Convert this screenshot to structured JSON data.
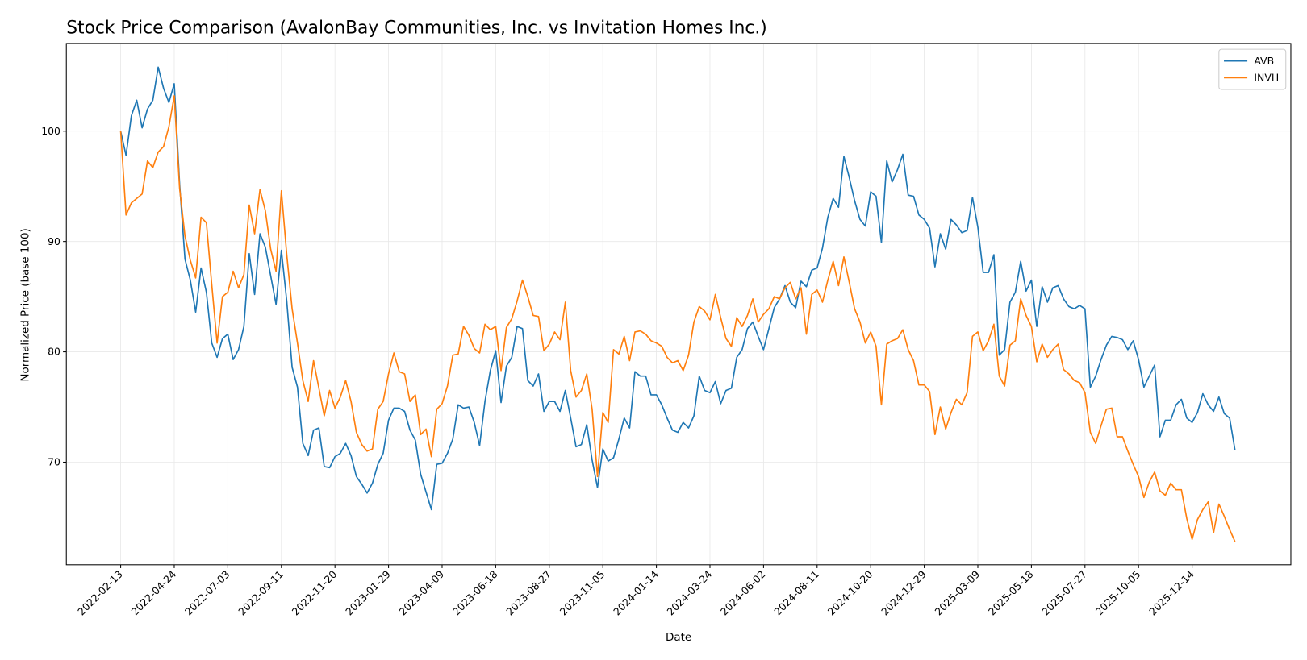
{
  "chart_data": {
    "type": "line",
    "title": "Stock Price Comparison (AvalonBay Communities, Inc. vs Invitation Homes Inc.)",
    "xlabel": "Date",
    "ylabel": "Normalized Price (base 100)",
    "x": [
      "2022-02-13",
      "2022-02-20",
      "2022-02-27",
      "2022-03-06",
      "2022-03-13",
      "2022-03-20",
      "2022-03-27",
      "2022-04-03",
      "2022-04-10",
      "2022-04-17",
      "2022-04-24",
      "2022-05-01",
      "2022-05-08",
      "2022-05-15",
      "2022-05-22",
      "2022-05-29",
      "2022-06-05",
      "2022-06-12",
      "2022-06-19",
      "2022-06-26",
      "2022-07-03",
      "2022-07-10",
      "2022-07-17",
      "2022-07-24",
      "2022-07-31",
      "2022-08-07",
      "2022-08-14",
      "2022-08-21",
      "2022-08-28",
      "2022-09-04",
      "2022-09-11",
      "2022-09-18",
      "2022-09-25",
      "2022-10-02",
      "2022-10-09",
      "2022-10-16",
      "2022-10-23",
      "2022-10-30",
      "2022-11-06",
      "2022-11-13",
      "2022-11-20",
      "2022-11-27",
      "2022-12-04",
      "2022-12-11",
      "2022-12-18",
      "2022-12-25",
      "2023-01-01",
      "2023-01-08",
      "2023-01-15",
      "2023-01-22",
      "2023-01-29",
      "2023-02-05",
      "2023-02-12",
      "2023-02-19",
      "2023-02-26",
      "2023-03-05",
      "2023-03-12",
      "2023-03-19",
      "2023-03-26",
      "2023-04-02",
      "2023-04-09",
      "2023-04-16",
      "2023-04-23",
      "2023-04-30",
      "2023-05-07",
      "2023-05-14",
      "2023-05-21",
      "2023-05-28",
      "2023-06-04",
      "2023-06-11",
      "2023-06-18",
      "2023-06-25",
      "2023-07-02",
      "2023-07-09",
      "2023-07-16",
      "2023-07-23",
      "2023-07-30",
      "2023-08-06",
      "2023-08-13",
      "2023-08-20",
      "2023-08-27",
      "2023-09-03",
      "2023-09-10",
      "2023-09-17",
      "2023-09-24",
      "2023-10-01",
      "2023-10-08",
      "2023-10-15",
      "2023-10-22",
      "2023-10-29",
      "2023-11-05",
      "2023-11-12",
      "2023-11-19",
      "2023-11-26",
      "2023-12-03",
      "2023-12-10",
      "2023-12-17",
      "2023-12-24",
      "2023-12-31",
      "2024-01-07",
      "2024-01-14",
      "2024-01-21",
      "2024-01-28",
      "2024-02-04",
      "2024-02-11",
      "2024-02-18",
      "2024-02-25",
      "2024-03-03",
      "2024-03-10",
      "2024-03-17",
      "2024-03-24",
      "2024-03-31",
      "2024-04-07",
      "2024-04-14",
      "2024-04-21",
      "2024-04-28",
      "2024-05-05",
      "2024-05-12",
      "2024-05-19",
      "2024-05-26",
      "2024-06-02",
      "2024-06-09",
      "2024-06-16",
      "2024-06-23",
      "2024-06-30",
      "2024-07-07",
      "2024-07-14",
      "2024-07-21",
      "2024-07-28",
      "2024-08-04",
      "2024-08-11",
      "2024-08-18",
      "2024-08-25",
      "2024-09-01",
      "2024-09-08",
      "2024-09-15",
      "2024-09-22",
      "2024-09-29",
      "2024-10-06",
      "2024-10-13",
      "2024-10-20",
      "2024-10-27",
      "2024-11-03",
      "2024-11-10",
      "2024-11-17",
      "2024-11-24",
      "2024-12-01",
      "2024-12-08",
      "2024-12-15",
      "2024-12-22",
      "2024-12-29",
      "2025-01-05",
      "2025-01-12",
      "2025-01-19",
      "2025-01-26",
      "2025-02-02",
      "2025-02-09",
      "2025-02-16",
      "2025-02-23",
      "2025-03-02",
      "2025-03-09",
      "2025-03-16",
      "2025-03-23",
      "2025-03-30",
      "2025-04-06",
      "2025-04-13",
      "2025-04-20",
      "2025-04-27",
      "2025-05-04",
      "2025-05-11",
      "2025-05-18",
      "2025-05-25",
      "2025-06-01",
      "2025-06-08",
      "2025-06-15",
      "2025-06-22",
      "2025-06-29",
      "2025-07-06",
      "2025-07-13",
      "2025-07-20",
      "2025-07-27",
      "2025-08-03",
      "2025-08-10",
      "2025-08-17",
      "2025-08-24",
      "2025-08-31",
      "2025-09-07",
      "2025-09-14",
      "2025-09-21",
      "2025-09-28",
      "2025-10-05",
      "2025-10-12",
      "2025-10-19",
      "2025-10-26",
      "2025-11-02",
      "2025-11-09",
      "2025-11-16",
      "2025-11-23",
      "2025-11-30",
      "2025-12-07",
      "2025-12-14",
      "2025-12-21",
      "2025-12-28",
      "2026-01-04",
      "2026-01-11",
      "2026-01-18",
      "2026-01-25",
      "2026-02-01",
      "2026-02-08"
    ],
    "series": [
      {
        "name": "AVB",
        "color": "#1f77b4",
        "values": [
          100,
          97.8,
          101.4,
          102.8,
          100.3,
          102,
          102.8,
          105.8,
          103.9,
          102.6,
          104.3,
          95.2,
          88.4,
          86.5,
          83.6,
          87.6,
          85.4,
          80.8,
          79.5,
          81.2,
          81.6,
          79.3,
          80.2,
          82.3,
          88.9,
          85.2,
          90.7,
          89.5,
          86.9,
          84.3,
          89.2,
          84.6,
          78.6,
          76.8,
          71.7,
          70.6,
          72.9,
          73.1,
          69.6,
          69.5,
          70.5,
          70.8,
          71.7,
          70.6,
          68.7,
          68,
          67.2,
          68.1,
          69.8,
          70.8,
          73.8,
          74.9,
          74.9,
          74.6,
          72.9,
          72,
          68.9,
          67.3,
          65.7,
          69.8,
          69.9,
          70.8,
          72.1,
          75.2,
          74.9,
          75,
          73.6,
          71.5,
          75.5,
          78.3,
          80.1,
          75.4,
          78.7,
          79.5,
          82.3,
          82.1,
          77.4,
          76.9,
          78,
          74.6,
          75.5,
          75.5,
          74.6,
          76.5,
          74,
          71.4,
          71.6,
          73.4,
          70.2,
          67.7,
          71.2,
          70.1,
          70.4,
          72.1,
          74,
          73.1,
          78.2,
          77.8,
          77.8,
          76.1,
          76.1,
          75.2,
          74,
          72.9,
          72.7,
          73.6,
          73.1,
          74.2,
          77.8,
          76.5,
          76.3,
          77.3,
          75.3,
          76.5,
          76.7,
          79.5,
          80.2,
          82.1,
          82.7,
          81.4,
          80.2,
          82.1,
          84,
          84.8,
          86,
          84.5,
          84,
          86.4,
          85.9,
          87.4,
          87.6,
          89.4,
          92.2,
          93.9,
          93.1,
          97.7,
          95.8,
          93.7,
          92,
          91.4,
          94.5,
          94.1,
          89.9,
          97.3,
          95.4,
          96.5,
          97.9,
          94.2,
          94.1,
          92.4,
          92,
          91.2,
          87.7,
          90.7,
          89.3,
          92,
          91.5,
          90.8,
          91,
          94,
          91.3,
          87.2,
          87.2,
          88.8,
          79.7,
          80.2,
          84.5,
          85.4,
          88.2,
          85.5,
          86.5,
          82.3,
          85.9,
          84.5,
          85.8,
          86,
          84.8,
          84.1,
          83.9,
          84.2,
          83.9,
          76.8,
          77.8,
          79.3,
          80.6,
          81.4,
          81.3,
          81.1,
          80.2,
          81,
          79.3,
          76.8,
          77.8,
          78.8,
          72.3,
          73.8,
          73.8,
          75.2,
          75.7,
          74,
          73.6,
          74.5,
          76.2,
          75.2,
          74.6,
          75.9,
          74.4,
          74,
          71.1
        ]
      },
      {
        "name": "INVH",
        "color": "#ff7f0e",
        "values": [
          100,
          92.4,
          93.5,
          93.9,
          94.3,
          97.3,
          96.7,
          98.1,
          98.6,
          100.4,
          103.2,
          94.8,
          90.5,
          88.3,
          86.7,
          92.2,
          91.7,
          86.1,
          80.8,
          85,
          85.4,
          87.3,
          85.8,
          87,
          93.3,
          90.7,
          94.7,
          92.8,
          89.3,
          87.3,
          94.6,
          88.8,
          83.9,
          80.8,
          77.4,
          75.5,
          79.2,
          76.7,
          74.2,
          76.5,
          74.9,
          75.9,
          77.4,
          75.5,
          72.7,
          71.6,
          71,
          71.2,
          74.8,
          75.5,
          78,
          79.9,
          78.2,
          78,
          75.5,
          76.1,
          72.5,
          73,
          70.5,
          74.8,
          75.3,
          76.9,
          79.7,
          79.8,
          82.3,
          81.5,
          80.3,
          79.9,
          82.5,
          82,
          82.3,
          78.3,
          82.2,
          83,
          84.6,
          86.5,
          85,
          83.3,
          83.2,
          80.1,
          80.7,
          81.8,
          81.1,
          84.5,
          78.3,
          75.9,
          76.5,
          78,
          74.8,
          68.7,
          74.5,
          73.6,
          80.2,
          79.8,
          81.4,
          79.2,
          81.8,
          81.9,
          81.6,
          81,
          80.8,
          80.5,
          79.5,
          79,
          79.2,
          78.3,
          79.7,
          82.7,
          84.1,
          83.7,
          82.9,
          85.2,
          83.1,
          81.2,
          80.5,
          83.1,
          82.3,
          83.3,
          84.8,
          82.7,
          83.4,
          83.9,
          85,
          84.8,
          85.8,
          86.3,
          84.8,
          85.8,
          81.6,
          85.2,
          85.6,
          84.5,
          86.5,
          88.2,
          86,
          88.6,
          86.3,
          83.9,
          82.7,
          80.8,
          81.8,
          80.5,
          75.2,
          80.7,
          81,
          81.2,
          82,
          80.2,
          79.2,
          77,
          77,
          76.4,
          72.5,
          75,
          73,
          74.5,
          75.7,
          75.2,
          76.3,
          81.4,
          81.8,
          80.1,
          81,
          82.5,
          77.8,
          76.9,
          80.6,
          81,
          84.8,
          83.3,
          82.3,
          79.1,
          80.7,
          79.5,
          80.2,
          80.7,
          78.4,
          78,
          77.4,
          77.2,
          76.3,
          72.7,
          71.7,
          73.3,
          74.8,
          74.9,
          72.3,
          72.3,
          71,
          69.8,
          68.7,
          66.8,
          68.2,
          69.1,
          67.4,
          67,
          68.1,
          67.5,
          67.5,
          64.9,
          63,
          64.8,
          65.7,
          66.4,
          63.6,
          66.2,
          65.1,
          63.9,
          62.8
        ]
      }
    ],
    "xlim": [
      "2021-12-04",
      "2026-04-22"
    ],
    "xticks": [
      "2022-02-13",
      "2022-04-24",
      "2022-07-03",
      "2022-09-11",
      "2022-11-20",
      "2023-01-29",
      "2023-04-09",
      "2023-06-18",
      "2023-08-27",
      "2023-11-05",
      "2024-01-14",
      "2024-03-24",
      "2024-06-02",
      "2024-08-11",
      "2024-10-20",
      "2024-12-29",
      "2025-03-09",
      "2025-05-18",
      "2025-07-27",
      "2025-10-05",
      "2025-12-14"
    ],
    "ylim": [
      60.7,
      107.95
    ],
    "yticks": [
      70,
      80,
      90,
      100
    ],
    "grid": true,
    "legend": "upper right"
  }
}
